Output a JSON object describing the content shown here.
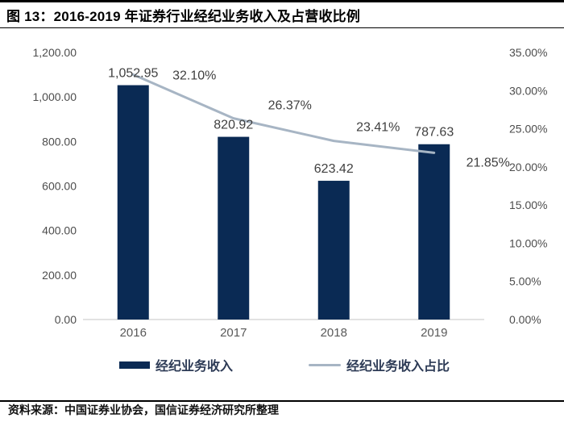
{
  "header": {
    "figure_title": "图 13：2016-2019 年证券行业经纪业务收入及占营收比例"
  },
  "footer": {
    "source": "资料来源：中国证券业协会，国信证券经济研究所整理"
  },
  "colors": {
    "bar": "#0a2a54",
    "line": "#a7b5c4",
    "axis_line": "#d9d9d9",
    "tick_text": "#4d4d4d",
    "xlabel_text": "#595959",
    "data_label_text": "#404040"
  },
  "chart_data": {
    "type": "bar",
    "subtype": "bar+line combo, dual axis",
    "title": "2016-2019 年证券行业经纪业务收入及占营收比例",
    "categories": [
      "2016",
      "2017",
      "2018",
      "2019"
    ],
    "series": [
      {
        "name": "经纪业务收入",
        "type": "bar",
        "axis": "left",
        "values": [
          1052.95,
          820.92,
          623.42,
          787.63
        ],
        "labels": [
          "1,052.95",
          "820.92",
          "623.42",
          "787.63"
        ]
      },
      {
        "name": "经纪业务收入占比",
        "type": "line",
        "axis": "right",
        "values": [
          32.1,
          26.37,
          23.41,
          21.85
        ],
        "labels": [
          "32.10%",
          "26.37%",
          "23.41%",
          "21.85%"
        ],
        "label_offsets": [
          [
            76,
            6
          ],
          [
            70,
            -11
          ],
          [
            55,
            -12
          ],
          [
            67,
            17
          ]
        ]
      }
    ],
    "left_axis": {
      "min": 0,
      "max": 1200,
      "ticks_top_down": [
        "1,200.00",
        "1,000.00",
        "800.00",
        "600.00",
        "400.00",
        "200.00",
        "0.00"
      ]
    },
    "right_axis": {
      "min": 0,
      "max": 35,
      "ticks_top_down": [
        "35.00%",
        "30.00%",
        "25.00%",
        "20.00%",
        "15.00%",
        "10.00%",
        "5.00%",
        "0.00%"
      ]
    },
    "grid": false,
    "legend_position": "bottom"
  }
}
